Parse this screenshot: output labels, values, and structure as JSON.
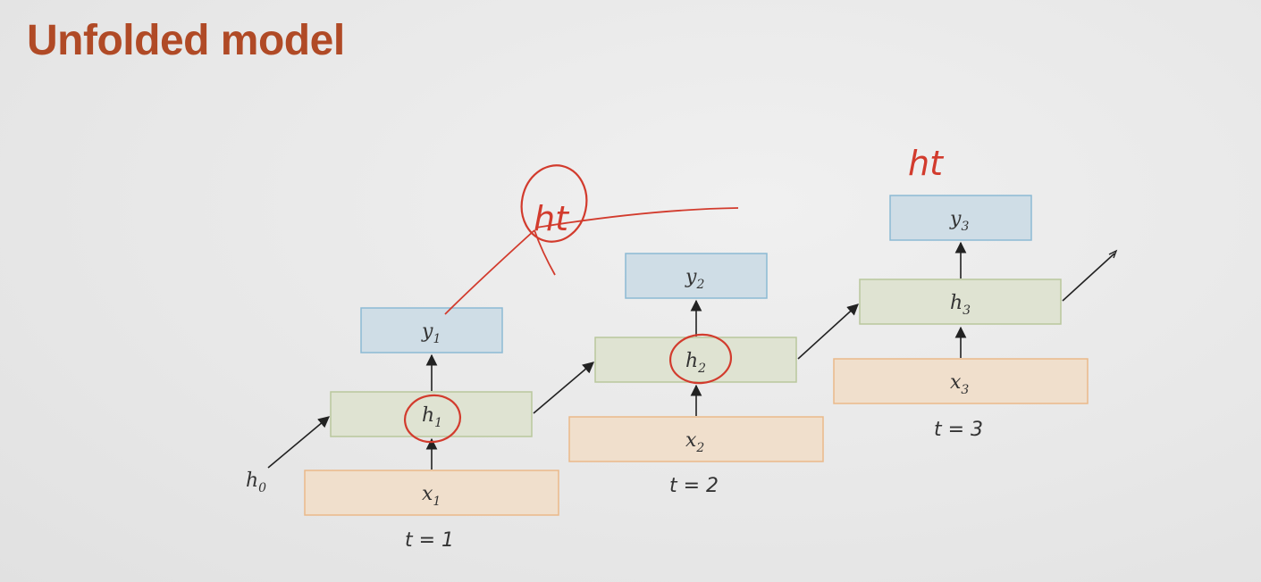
{
  "slide": {
    "title": "Unfolded model"
  },
  "diagram": {
    "initial_state": {
      "label": "h",
      "sub": "0"
    },
    "steps": [
      {
        "time": "t = 1",
        "input": {
          "label": "x",
          "sub": "1"
        },
        "hidden": {
          "label": "h",
          "sub": "1"
        },
        "output": {
          "label": "y",
          "sub": "1"
        }
      },
      {
        "time": "t = 2",
        "input": {
          "label": "x",
          "sub": "2"
        },
        "hidden": {
          "label": "h",
          "sub": "2"
        },
        "output": {
          "label": "y",
          "sub": "2"
        }
      },
      {
        "time": "t = 3",
        "input": {
          "label": "x",
          "sub": "3"
        },
        "hidden": {
          "label": "h",
          "sub": "3"
        },
        "output": {
          "label": "y",
          "sub": "3"
        }
      }
    ],
    "colors": {
      "input_fill": "#f0dfcc",
      "input_stroke": "#eab98a",
      "hidden_fill": "#dfe3d2",
      "hidden_stroke": "#b9c79c",
      "output_fill": "#cfdde6",
      "output_stroke": "#8cbad4",
      "arrow": "#222222",
      "annotation": "#d23b2d",
      "title": "#b04a26"
    }
  },
  "annotations": {
    "handwritten_1": "ht",
    "handwritten_2": "ht"
  }
}
